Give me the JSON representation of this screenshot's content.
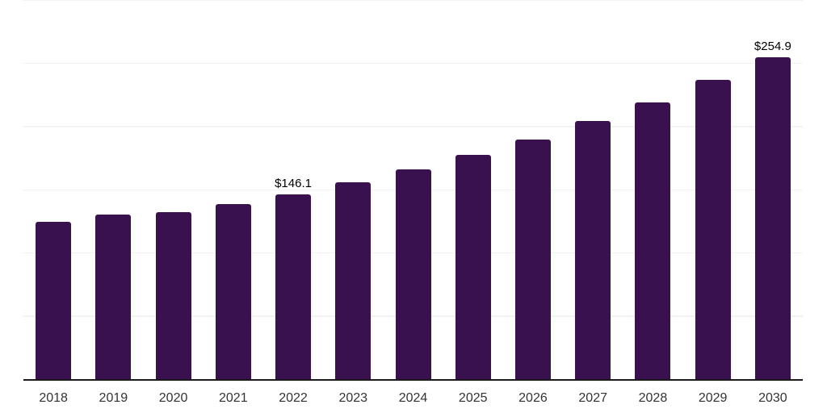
{
  "chart_data": {
    "type": "bar",
    "title": "",
    "categories": [
      "2018",
      "2019",
      "2020",
      "2021",
      "2022",
      "2023",
      "2024",
      "2025",
      "2026",
      "2027",
      "2028",
      "2029",
      "2030"
    ],
    "values": [
      124.3,
      130.1,
      131.9,
      138.4,
      146.1,
      155.7,
      165.9,
      177.4,
      189.9,
      204.0,
      219.0,
      236.6,
      254.9
    ],
    "annotations": [
      {
        "category": "2022",
        "text": "$146.1"
      },
      {
        "category": "2030",
        "text": "$254.9"
      }
    ],
    "xlabel": "",
    "ylabel": "",
    "ylim": [
      0,
      300
    ],
    "grid_step": 50,
    "grid": "horizontal-only",
    "legend_position": "none",
    "y_axis_labels_visible": false,
    "colors": {
      "bar": "#38114E",
      "grid_line": "#f2f2f2",
      "axis_line": "#1a1a1a",
      "data_label": "#000000",
      "tick_label": "#333333",
      "background": "#ffffff"
    }
  }
}
